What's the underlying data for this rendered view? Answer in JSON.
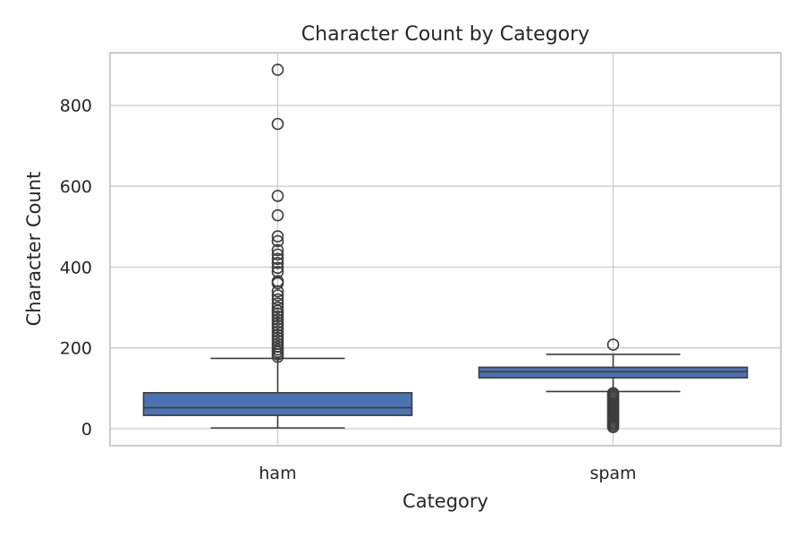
{
  "chart_data": {
    "type": "box",
    "title": "Character Count by Category",
    "xlabel": "Category",
    "ylabel": "Character Count",
    "ylim": [
      -42,
      930
    ],
    "yticks": [
      0,
      200,
      400,
      600,
      800
    ],
    "grid": true,
    "box_color": "#4c72b0",
    "categories": [
      "ham",
      "spam"
    ],
    "boxes": [
      {
        "category": "ham",
        "whisker_low": 2,
        "q1": 33,
        "median": 52,
        "q3": 89,
        "whisker_high": 174,
        "fliers": [
          888,
          754,
          576,
          528,
          476,
          464,
          442,
          431,
          420,
          410,
          398,
          388,
          365,
          360,
          340,
          330,
          320,
          310,
          300,
          292,
          285,
          278,
          270,
          262,
          255,
          248,
          240,
          232,
          225,
          218,
          210,
          203,
          196,
          190,
          184,
          178
        ]
      },
      {
        "category": "spam",
        "whisker_low": 92,
        "q1": 126,
        "median": 141,
        "q3": 152,
        "whisker_high": 184,
        "fliers": [
          208,
          88,
          84,
          80,
          76,
          72,
          68,
          64,
          60,
          56,
          52,
          48,
          44,
          40,
          36,
          32,
          28,
          24,
          20,
          16,
          12,
          8,
          4
        ]
      }
    ]
  }
}
